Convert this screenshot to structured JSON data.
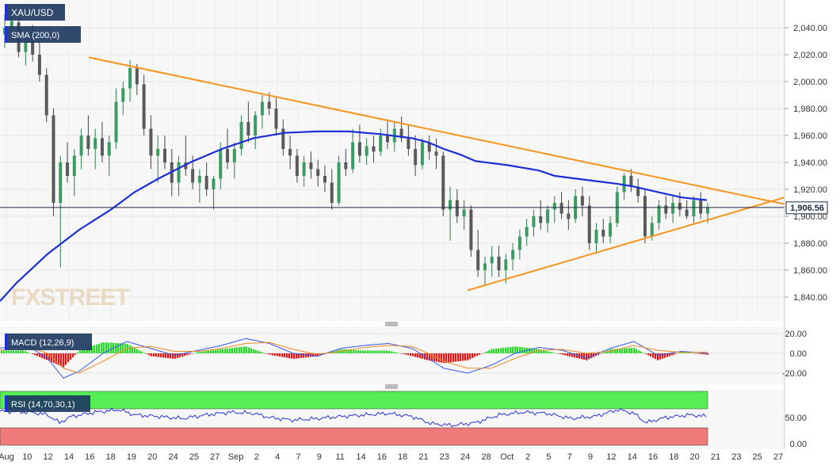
{
  "chart_data": {
    "type": "candlestick",
    "symbol_label": "XAU/USD",
    "indicators": {
      "sma": {
        "label": "SMA (200,0)",
        "color": "#1b2ed8"
      },
      "macd": {
        "label": "MACD (12,26,9)",
        "y_ticks": [
          "20.00",
          "0.00",
          "-20.00"
        ],
        "hist_pos_color": "#22dd22",
        "hist_neg_color": "#ee1111",
        "macd_color": "#3355ee",
        "signal_color": "#ee8822"
      },
      "rsi": {
        "label": "RSI (14,70,30,1)",
        "y_ticks": [
          "50.00",
          "0.00"
        ],
        "overbought_color": "#55ee55",
        "oversold_color": "#f07a7a",
        "line_color": "#2233dd"
      }
    },
    "price_axis": {
      "ticks": [
        "2,040.00",
        "2,020.00",
        "2,000.00",
        "1,980.00",
        "1,960.00",
        "1,940.00",
        "1,920.00",
        "1,900.00",
        "1,880.00",
        "1,860.00",
        "1,840.00"
      ],
      "ylim": [
        1832,
        2055
      ]
    },
    "current_price": {
      "value": 1906.56,
      "label": "1,906.56"
    },
    "x_axis": {
      "labels": [
        "Aug",
        "10",
        "12",
        "14",
        "16",
        "18",
        "19",
        "20",
        "24",
        "25",
        "27",
        "Sep",
        "2",
        "4",
        "7",
        "9",
        "11",
        "14",
        "16",
        "18",
        "21",
        "23",
        "24",
        "28",
        "Oct",
        "2",
        "5",
        "7",
        "9",
        "12",
        "14",
        "16",
        "18",
        "20",
        "21",
        "23",
        "25",
        "27"
      ]
    },
    "watermark": "FXSTREET",
    "trendlines": {
      "color": "#f7941d"
    },
    "ohlc_approx": [
      {
        "o": 2035,
        "h": 2050,
        "l": 2025,
        "c": 2040
      },
      {
        "o": 2040,
        "h": 2052,
        "l": 2030,
        "c": 2045
      },
      {
        "o": 2044,
        "h": 2048,
        "l": 2018,
        "c": 2022
      },
      {
        "o": 2022,
        "h": 2035,
        "l": 2012,
        "c": 2030
      },
      {
        "o": 2030,
        "h": 2042,
        "l": 2015,
        "c": 2020
      },
      {
        "o": 2020,
        "h": 2030,
        "l": 2000,
        "c": 2005
      },
      {
        "o": 2005,
        "h": 2010,
        "l": 1970,
        "c": 1975
      },
      {
        "o": 1975,
        "h": 1980,
        "l": 1900,
        "c": 1910
      },
      {
        "o": 1910,
        "h": 1945,
        "l": 1862,
        "c": 1940
      },
      {
        "o": 1940,
        "h": 1955,
        "l": 1925,
        "c": 1930
      },
      {
        "o": 1930,
        "h": 1950,
        "l": 1915,
        "c": 1945
      },
      {
        "o": 1945,
        "h": 1965,
        "l": 1935,
        "c": 1960
      },
      {
        "o": 1960,
        "h": 1975,
        "l": 1945,
        "c": 1950
      },
      {
        "o": 1950,
        "h": 1965,
        "l": 1935,
        "c": 1958
      },
      {
        "o": 1958,
        "h": 1970,
        "l": 1940,
        "c": 1945
      },
      {
        "o": 1945,
        "h": 1960,
        "l": 1930,
        "c": 1955
      },
      {
        "o": 1955,
        "h": 1995,
        "l": 1950,
        "c": 1985
      },
      {
        "o": 1985,
        "h": 2000,
        "l": 1975,
        "c": 1995
      },
      {
        "o": 1995,
        "h": 2016,
        "l": 1985,
        "c": 2010
      },
      {
        "o": 2010,
        "h": 2013,
        "l": 1990,
        "c": 1998
      },
      {
        "o": 1998,
        "h": 2005,
        "l": 1960,
        "c": 1965
      },
      {
        "o": 1965,
        "h": 1975,
        "l": 1935,
        "c": 1945
      },
      {
        "o": 1945,
        "h": 1960,
        "l": 1925,
        "c": 1950
      },
      {
        "o": 1950,
        "h": 1960,
        "l": 1935,
        "c": 1940
      },
      {
        "o": 1940,
        "h": 1950,
        "l": 1915,
        "c": 1925
      },
      {
        "o": 1925,
        "h": 1945,
        "l": 1915,
        "c": 1940
      },
      {
        "o": 1940,
        "h": 1960,
        "l": 1930,
        "c": 1935
      },
      {
        "o": 1935,
        "h": 1945,
        "l": 1920,
        "c": 1925
      },
      {
        "o": 1925,
        "h": 1935,
        "l": 1910,
        "c": 1930
      },
      {
        "o": 1930,
        "h": 1940,
        "l": 1915,
        "c": 1920
      },
      {
        "o": 1920,
        "h": 1930,
        "l": 1905,
        "c": 1928
      },
      {
        "o": 1928,
        "h": 1955,
        "l": 1920,
        "c": 1950
      },
      {
        "o": 1950,
        "h": 1965,
        "l": 1935,
        "c": 1940
      },
      {
        "o": 1940,
        "h": 1955,
        "l": 1928,
        "c": 1950
      },
      {
        "o": 1950,
        "h": 1975,
        "l": 1945,
        "c": 1970
      },
      {
        "o": 1970,
        "h": 1985,
        "l": 1955,
        "c": 1960
      },
      {
        "o": 1960,
        "h": 1978,
        "l": 1950,
        "c": 1975
      },
      {
        "o": 1975,
        "h": 1990,
        "l": 1965,
        "c": 1985
      },
      {
        "o": 1985,
        "h": 1992,
        "l": 1975,
        "c": 1980
      },
      {
        "o": 1980,
        "h": 1988,
        "l": 1960,
        "c": 1965
      },
      {
        "o": 1965,
        "h": 1972,
        "l": 1945,
        "c": 1950
      },
      {
        "o": 1950,
        "h": 1960,
        "l": 1935,
        "c": 1945
      },
      {
        "o": 1945,
        "h": 1950,
        "l": 1925,
        "c": 1930
      },
      {
        "o": 1930,
        "h": 1945,
        "l": 1922,
        "c": 1940
      },
      {
        "o": 1940,
        "h": 1948,
        "l": 1928,
        "c": 1935
      },
      {
        "o": 1935,
        "h": 1942,
        "l": 1922,
        "c": 1930
      },
      {
        "o": 1930,
        "h": 1938,
        "l": 1918,
        "c": 1925
      },
      {
        "o": 1925,
        "h": 1935,
        "l": 1905,
        "c": 1910
      },
      {
        "o": 1910,
        "h": 1945,
        "l": 1908,
        "c": 1940
      },
      {
        "o": 1940,
        "h": 1950,
        "l": 1930,
        "c": 1935
      },
      {
        "o": 1935,
        "h": 1965,
        "l": 1932,
        "c": 1955
      },
      {
        "o": 1955,
        "h": 1968,
        "l": 1940,
        "c": 1945
      },
      {
        "o": 1945,
        "h": 1958,
        "l": 1938,
        "c": 1952
      },
      {
        "o": 1952,
        "h": 1960,
        "l": 1940,
        "c": 1948
      },
      {
        "o": 1948,
        "h": 1965,
        "l": 1945,
        "c": 1960
      },
      {
        "o": 1960,
        "h": 1972,
        "l": 1950,
        "c": 1955
      },
      {
        "o": 1955,
        "h": 1970,
        "l": 1948,
        "c": 1965
      },
      {
        "o": 1965,
        "h": 1974,
        "l": 1955,
        "c": 1958
      },
      {
        "o": 1958,
        "h": 1968,
        "l": 1945,
        "c": 1950
      },
      {
        "o": 1950,
        "h": 1960,
        "l": 1930,
        "c": 1938
      },
      {
        "o": 1938,
        "h": 1958,
        "l": 1935,
        "c": 1955
      },
      {
        "o": 1955,
        "h": 1960,
        "l": 1942,
        "c": 1948
      },
      {
        "o": 1948,
        "h": 1958,
        "l": 1935,
        "c": 1945
      },
      {
        "o": 1945,
        "h": 1948,
        "l": 1900,
        "c": 1905
      },
      {
        "o": 1905,
        "h": 1922,
        "l": 1882,
        "c": 1912
      },
      {
        "o": 1912,
        "h": 1920,
        "l": 1895,
        "c": 1900
      },
      {
        "o": 1900,
        "h": 1912,
        "l": 1890,
        "c": 1905
      },
      {
        "o": 1905,
        "h": 1908,
        "l": 1870,
        "c": 1875
      },
      {
        "o": 1875,
        "h": 1890,
        "l": 1855,
        "c": 1860
      },
      {
        "o": 1860,
        "h": 1870,
        "l": 1848,
        "c": 1865
      },
      {
        "o": 1865,
        "h": 1878,
        "l": 1855,
        "c": 1870
      },
      {
        "o": 1870,
        "h": 1878,
        "l": 1855,
        "c": 1860
      },
      {
        "o": 1860,
        "h": 1872,
        "l": 1850,
        "c": 1868
      },
      {
        "o": 1868,
        "h": 1880,
        "l": 1860,
        "c": 1875
      },
      {
        "o": 1875,
        "h": 1890,
        "l": 1868,
        "c": 1885
      },
      {
        "o": 1885,
        "h": 1898,
        "l": 1878,
        "c": 1892
      },
      {
        "o": 1892,
        "h": 1905,
        "l": 1885,
        "c": 1900
      },
      {
        "o": 1900,
        "h": 1912,
        "l": 1890,
        "c": 1895
      },
      {
        "o": 1895,
        "h": 1908,
        "l": 1888,
        "c": 1905
      },
      {
        "o": 1905,
        "h": 1915,
        "l": 1895,
        "c": 1910
      },
      {
        "o": 1910,
        "h": 1918,
        "l": 1898,
        "c": 1902
      },
      {
        "o": 1902,
        "h": 1912,
        "l": 1890,
        "c": 1898
      },
      {
        "o": 1898,
        "h": 1920,
        "l": 1895,
        "c": 1915
      },
      {
        "o": 1915,
        "h": 1922,
        "l": 1900,
        "c": 1908
      },
      {
        "o": 1908,
        "h": 1915,
        "l": 1875,
        "c": 1880
      },
      {
        "o": 1880,
        "h": 1895,
        "l": 1872,
        "c": 1890
      },
      {
        "o": 1890,
        "h": 1898,
        "l": 1880,
        "c": 1885
      },
      {
        "o": 1885,
        "h": 1900,
        "l": 1880,
        "c": 1895
      },
      {
        "o": 1895,
        "h": 1922,
        "l": 1892,
        "c": 1918
      },
      {
        "o": 1918,
        "h": 1932,
        "l": 1912,
        "c": 1930
      },
      {
        "o": 1930,
        "h": 1935,
        "l": 1918,
        "c": 1922
      },
      {
        "o": 1922,
        "h": 1928,
        "l": 1910,
        "c": 1915
      },
      {
        "o": 1915,
        "h": 1920,
        "l": 1880,
        "c": 1885
      },
      {
        "o": 1885,
        "h": 1900,
        "l": 1882,
        "c": 1895
      },
      {
        "o": 1895,
        "h": 1912,
        "l": 1890,
        "c": 1908
      },
      {
        "o": 1908,
        "h": 1915,
        "l": 1898,
        "c": 1902
      },
      {
        "o": 1902,
        "h": 1915,
        "l": 1895,
        "c": 1910
      },
      {
        "o": 1910,
        "h": 1918,
        "l": 1900,
        "c": 1905
      },
      {
        "o": 1905,
        "h": 1912,
        "l": 1898,
        "c": 1900
      },
      {
        "o": 1900,
        "h": 1915,
        "l": 1895,
        "c": 1912
      },
      {
        "o": 1912,
        "h": 1918,
        "l": 1898,
        "c": 1902
      },
      {
        "o": 1902,
        "h": 1910,
        "l": 1895,
        "c": 1906.56
      }
    ],
    "sma_approx": [
      [
        0,
        1837
      ],
      [
        20,
        1850
      ],
      [
        60,
        1872
      ],
      [
        100,
        1890
      ],
      [
        140,
        1905
      ],
      [
        170,
        1918
      ],
      [
        200,
        1928
      ],
      [
        240,
        1940
      ],
      [
        280,
        1950
      ],
      [
        320,
        1958
      ],
      [
        360,
        1962
      ],
      [
        400,
        1963
      ],
      [
        440,
        1963
      ],
      [
        480,
        1961
      ],
      [
        520,
        1958
      ],
      [
        540,
        1955
      ],
      [
        560,
        1950
      ],
      [
        580,
        1946
      ],
      [
        600,
        1941
      ],
      [
        640,
        1938
      ],
      [
        680,
        1934
      ],
      [
        700,
        1930
      ],
      [
        740,
        1927
      ],
      [
        780,
        1924
      ],
      [
        800,
        1922
      ],
      [
        830,
        1918
      ],
      [
        860,
        1914
      ],
      [
        892,
        1912
      ]
    ],
    "resistance_line": {
      "from": [
        112,
        2018
      ],
      "to": [
        990,
        1909
      ]
    },
    "support_line": {
      "from": [
        590,
        1845
      ],
      "to": [
        990,
        1914
      ]
    },
    "macd_approx": {
      "macd": [
        [
          0,
          5
        ],
        [
          30,
          10
        ],
        [
          60,
          -5
        ],
        [
          80,
          -25
        ],
        [
          100,
          -18
        ],
        [
          130,
          0
        ],
        [
          160,
          12
        ],
        [
          190,
          5
        ],
        [
          220,
          -2
        ],
        [
          250,
          3
        ],
        [
          280,
          8
        ],
        [
          310,
          15
        ],
        [
          340,
          10
        ],
        [
          370,
          0
        ],
        [
          400,
          -3
        ],
        [
          430,
          5
        ],
        [
          460,
          8
        ],
        [
          490,
          10
        ],
        [
          520,
          5
        ],
        [
          540,
          -5
        ],
        [
          560,
          -15
        ],
        [
          590,
          -20
        ],
        [
          620,
          -12
        ],
        [
          650,
          0
        ],
        [
          680,
          6
        ],
        [
          710,
          3
        ],
        [
          740,
          -5
        ],
        [
          770,
          5
        ],
        [
          800,
          12
        ],
        [
          830,
          -2
        ],
        [
          860,
          2
        ],
        [
          893,
          0
        ]
      ],
      "signal": [
        [
          0,
          3
        ],
        [
          30,
          8
        ],
        [
          60,
          0
        ],
        [
          80,
          -15
        ],
        [
          100,
          -20
        ],
        [
          130,
          -8
        ],
        [
          160,
          5
        ],
        [
          190,
          7
        ],
        [
          220,
          2
        ],
        [
          250,
          2
        ],
        [
          280,
          5
        ],
        [
          310,
          10
        ],
        [
          340,
          11
        ],
        [
          370,
          4
        ],
        [
          400,
          -1
        ],
        [
          430,
          2
        ],
        [
          460,
          6
        ],
        [
          490,
          8
        ],
        [
          520,
          7
        ],
        [
          540,
          0
        ],
        [
          560,
          -8
        ],
        [
          590,
          -15
        ],
        [
          620,
          -15
        ],
        [
          650,
          -5
        ],
        [
          680,
          3
        ],
        [
          710,
          4
        ],
        [
          740,
          0
        ],
        [
          770,
          2
        ],
        [
          800,
          8
        ],
        [
          830,
          3
        ],
        [
          860,
          1
        ],
        [
          893,
          1
        ]
      ]
    },
    "rsi_approx": [
      [
        0,
        62
      ],
      [
        40,
        60
      ],
      [
        60,
        55
      ],
      [
        75,
        40
      ],
      [
        90,
        52
      ],
      [
        120,
        60
      ],
      [
        150,
        65
      ],
      [
        170,
        55
      ],
      [
        200,
        52
      ],
      [
        230,
        48
      ],
      [
        260,
        55
      ],
      [
        290,
        60
      ],
      [
        320,
        58
      ],
      [
        340,
        50
      ],
      [
        370,
        45
      ],
      [
        400,
        48
      ],
      [
        430,
        52
      ],
      [
        460,
        55
      ],
      [
        490,
        58
      ],
      [
        520,
        52
      ],
      [
        545,
        38
      ],
      [
        570,
        35
      ],
      [
        600,
        40
      ],
      [
        630,
        55
      ],
      [
        660,
        60
      ],
      [
        690,
        58
      ],
      [
        720,
        48
      ],
      [
        750,
        52
      ],
      [
        780,
        65
      ],
      [
        800,
        58
      ],
      [
        815,
        40
      ],
      [
        840,
        50
      ],
      [
        870,
        55
      ],
      [
        893,
        52
      ]
    ]
  }
}
